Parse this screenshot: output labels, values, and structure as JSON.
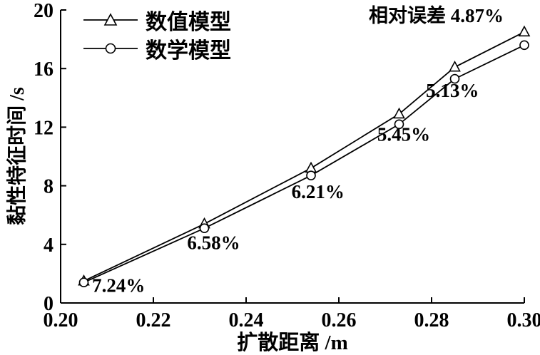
{
  "chart_data": {
    "type": "line",
    "title": "",
    "xlabel": "扩散距离 /m",
    "ylabel": "黏性特征时间 /s",
    "xlim": [
      0.2,
      0.3
    ],
    "ylim": [
      0,
      20
    ],
    "xticks": [
      0.2,
      0.22,
      0.24,
      0.26,
      0.28,
      0.3
    ],
    "xtick_labels": [
      "0.20",
      "0.22",
      "0.24",
      "0.26",
      "0.28",
      "0.30"
    ],
    "yticks": [
      0,
      4,
      8,
      12,
      16,
      20
    ],
    "ytick_labels": [
      "0",
      "4",
      "8",
      "12",
      "16",
      "20"
    ],
    "x": [
      0.205,
      0.231,
      0.254,
      0.273,
      0.285,
      0.3
    ],
    "series": [
      {
        "name": "数值模型",
        "marker": "triangle",
        "values": [
          1.5,
          5.4,
          9.2,
          12.9,
          16.1,
          18.5
        ]
      },
      {
        "name": "数学模型",
        "marker": "circle",
        "values": [
          1.4,
          5.1,
          8.7,
          12.2,
          15.3,
          17.6
        ]
      }
    ],
    "annotations": [
      {
        "label": "7.24%",
        "x": 0.2125,
        "y": 1.2
      },
      {
        "label": "6.58%",
        "x": 0.233,
        "y": 4.1
      },
      {
        "label": "6.21%",
        "x": 0.2555,
        "y": 7.6
      },
      {
        "label": "5.45%",
        "x": 0.274,
        "y": 11.5
      },
      {
        "label": "5.13%",
        "x": 0.2845,
        "y": 14.5
      },
      {
        "label": "相对误差 4.87%",
        "x": 0.281,
        "y": 19.6
      }
    ],
    "legend_position": "top-left",
    "grid": false
  },
  "colors": {
    "ink": "#000000",
    "background": "#ffffff"
  }
}
